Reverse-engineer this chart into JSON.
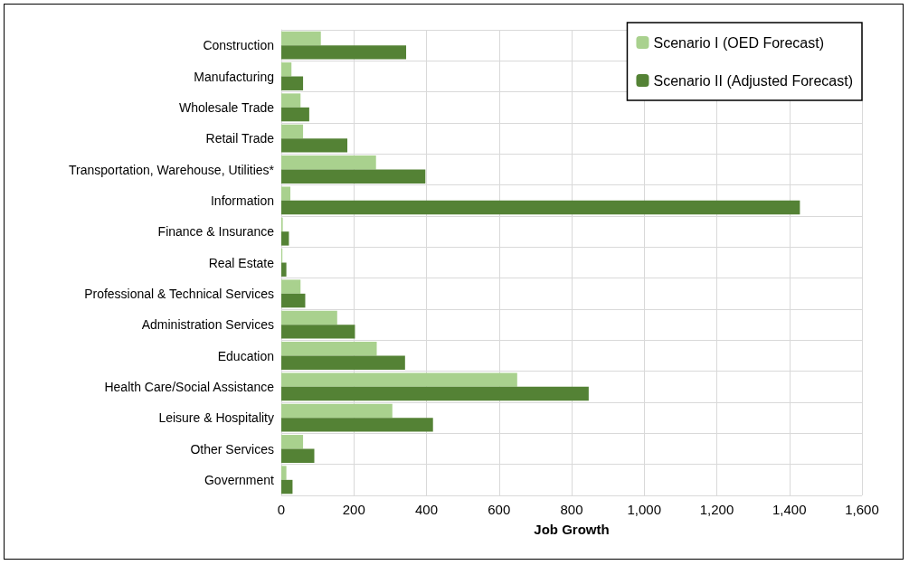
{
  "chart_data": {
    "type": "bar",
    "orientation": "horizontal",
    "xlabel": "Job Growth",
    "categories": [
      "Construction",
      "Manufacturing",
      "Wholesale Trade",
      "Retail Trade",
      "Transportation, Warehouse, Utilities*",
      "Information",
      "Finance & Insurance",
      "Real Estate",
      "Professional & Technical Services",
      "Administration Services",
      "Education",
      "Health Care/Social Assistance",
      "Leisure & Hospitality",
      "Other Services",
      "Government"
    ],
    "series": [
      {
        "name": "Scenario I (OED Forecast)",
        "color": "#a9d18e",
        "values": [
          109,
          28,
          53,
          60,
          261,
          25,
          4,
          3,
          53,
          154,
          263,
          650,
          306,
          60,
          14
        ]
      },
      {
        "name": "Scenario II (Adjusted Forecast)",
        "color": "#548235",
        "values": [
          344,
          60,
          77,
          182,
          397,
          1429,
          21,
          14,
          66,
          203,
          341,
          847,
          418,
          91,
          31
        ]
      }
    ],
    "xlim": [
      0,
      1600
    ],
    "xticks": [
      {
        "value": 0,
        "label": "0"
      },
      {
        "value": 200,
        "label": "200"
      },
      {
        "value": 400,
        "label": "400"
      },
      {
        "value": 600,
        "label": "600"
      },
      {
        "value": 800,
        "label": "800"
      },
      {
        "value": 1000,
        "label": "1,000"
      },
      {
        "value": 1200,
        "label": "1,200"
      },
      {
        "value": 1400,
        "label": "1,400"
      },
      {
        "value": 1600,
        "label": "1,600"
      }
    ],
    "grid": true,
    "legend": "top right"
  }
}
